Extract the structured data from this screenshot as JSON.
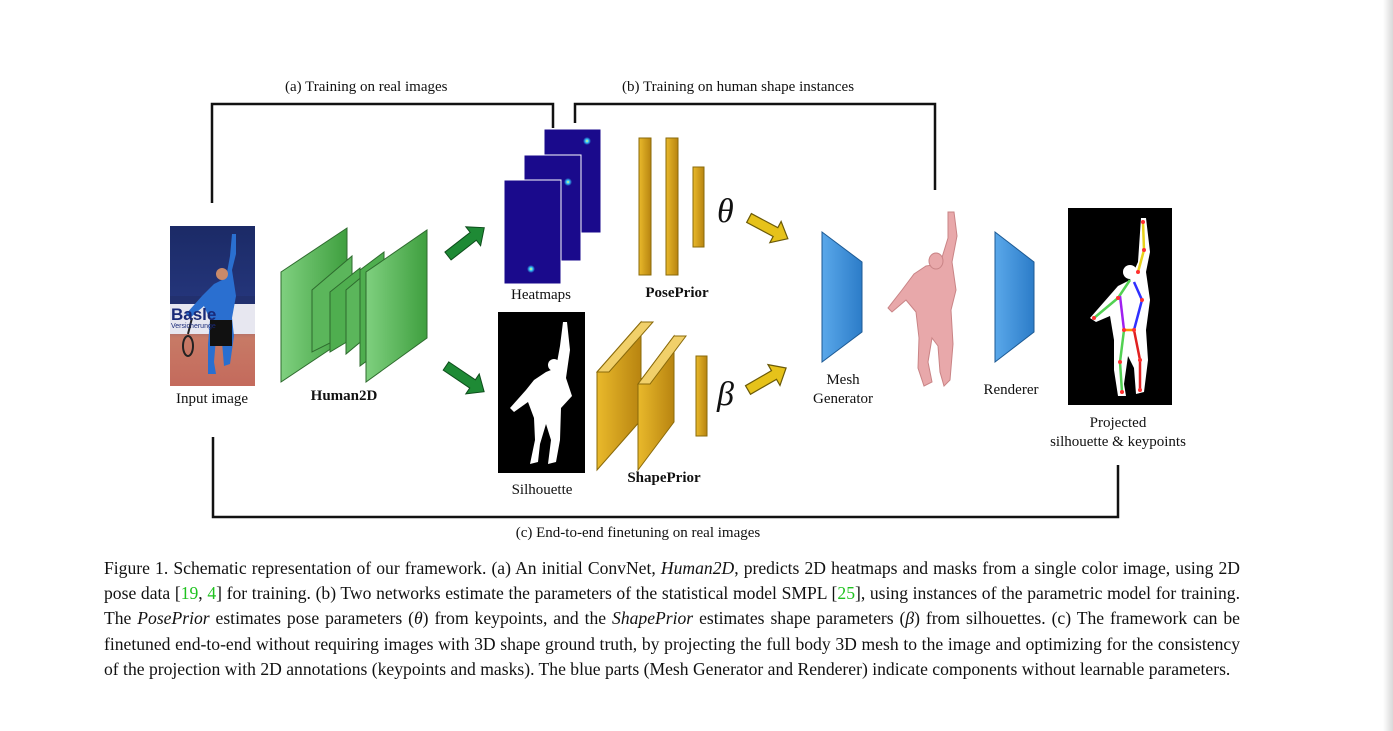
{
  "figure": {
    "labels": {
      "training_real": "(a) Training on real images",
      "training_shape": "(b) Training on human shape instances",
      "finetuning": "(c) End-to-end finetuning on real images",
      "input_image": "Input image",
      "human2d": "Human2D",
      "heatmaps": "Heatmaps",
      "silhouette": "Silhouette",
      "poseprior": "PosePrior",
      "shapeprior": "ShapePrior",
      "theta": "θ",
      "beta": "β",
      "mesh_generator_line1": "Mesh",
      "mesh_generator_line2": "Generator",
      "renderer": "Renderer",
      "projected_line1": "Projected",
      "projected_line2": "silhouette & keypoints"
    },
    "input_photo_text": {
      "banner": "Basle",
      "sub": "Versicherunge"
    },
    "colors": {
      "green_block": "#4caf4c",
      "green_arrow": "#1e8a35",
      "gold": "#d4a017",
      "yellow_arrow": "#e6c21a",
      "blue": "#3a8fd6",
      "heatmap": "#1a0a8c",
      "mesh": "#e8a8aa",
      "cite": "#1fc21f"
    }
  },
  "caption": {
    "fig_label": "Figure 1.",
    "s1": "Schematic representation of our framework. (a) An initial ConvNet,",
    "s1_italic": "Human2D",
    "s2": ", predicts 2D heatmaps and masks from a single color image, using 2D pose data [",
    "cite_19": "19",
    "comma": ", ",
    "cite_4": "4",
    "s3": "] for training. (b) Two networks estimate the parameters of the statistical model SMPL [",
    "cite_25": "25",
    "s4": "], using instances of the parametric model for training. The",
    "poseprior_italic": "PosePrior",
    "s5": "estimates pose parameters (",
    "theta": "θ",
    "s6": ") from keypoints, and the",
    "shapeprior_italic": "ShapePrior",
    "s7": "estimates shape parameters (",
    "beta": "β",
    "s8": ") from silhouettes. (c) The framework can be finetuned end-to-end without requiring images with 3D shape ground truth, by projecting the full body 3D mesh to the image and optimizing for the consistency of the projection with 2D annotations (keypoints and masks). The blue parts (Mesh Generator and Renderer) indicate components without learnable parameters."
  }
}
